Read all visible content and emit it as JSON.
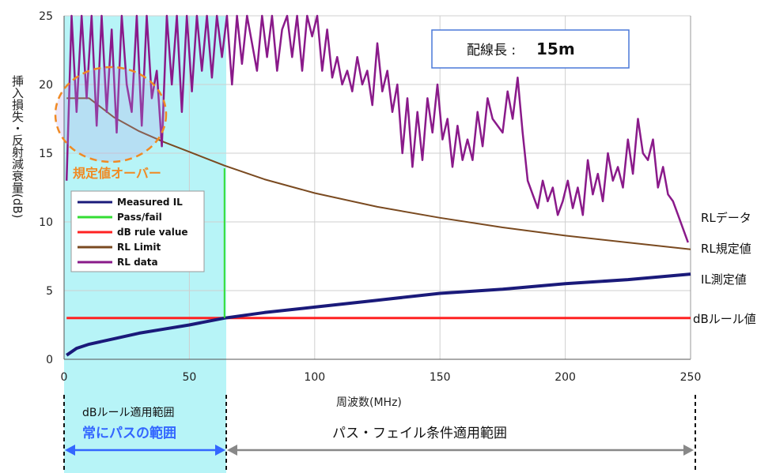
{
  "chart_data": {
    "type": "line",
    "xlabel": "周波数(MHz)",
    "ylabel": "挿入損失・反射減衰量(dB)",
    "xlim": [
      0,
      250
    ],
    "ylim": [
      0,
      25
    ],
    "x_ticks": [
      "0",
      "50",
      "100",
      "150",
      "200",
      "250"
    ],
    "y_ticks": [
      "0",
      "5",
      "10",
      "15",
      "20",
      "25"
    ],
    "grid": true,
    "legend_position": "left-middle",
    "legend": [
      "Measured IL",
      "Pass/fail",
      "dB rule value",
      "RL Limit",
      "RL data"
    ],
    "series": [
      {
        "name": "Measured IL",
        "color": "#1a1a7a",
        "x": [
          1,
          5,
          10,
          20,
          30,
          40,
          50,
          64,
          80,
          100,
          125,
          150,
          175,
          200,
          225,
          250
        ],
        "y": [
          0.3,
          0.8,
          1.1,
          1.5,
          1.9,
          2.2,
          2.5,
          3.0,
          3.4,
          3.8,
          4.3,
          4.8,
          5.1,
          5.5,
          5.8,
          6.2
        ]
      },
      {
        "name": "Pass/fail",
        "color": "#33dd33",
        "x": [
          64,
          64
        ],
        "y": [
          3.0,
          13.9
        ]
      },
      {
        "name": "dB rule value",
        "color": "#ff2222",
        "x": [
          1,
          250
        ],
        "y": [
          3.0,
          3.0
        ]
      },
      {
        "name": "RL Limit",
        "color": "#7a4a20",
        "x": [
          1,
          10,
          20,
          30,
          40,
          50,
          64,
          80,
          100,
          125,
          150,
          175,
          200,
          225,
          250
        ],
        "y": [
          19.0,
          19.0,
          17.6,
          16.6,
          15.8,
          15.1,
          14.1,
          13.1,
          12.1,
          11.1,
          10.3,
          9.6,
          9.0,
          8.5,
          8.0
        ]
      },
      {
        "name": "RL data",
        "color": "#8a1a8a",
        "x": [
          1,
          3,
          5,
          7,
          9,
          11,
          13,
          15,
          17,
          19,
          21,
          23,
          25,
          27,
          29,
          31,
          33,
          35,
          37,
          39,
          41,
          43,
          45,
          47,
          49,
          51,
          53,
          55,
          57,
          59,
          61,
          63,
          65,
          67,
          69,
          71,
          73,
          75,
          77,
          79,
          81,
          83,
          85,
          87,
          89,
          91,
          93,
          95,
          97,
          99,
          101,
          103,
          105,
          107,
          109,
          111,
          113,
          115,
          117,
          119,
          121,
          123,
          125,
          127,
          129,
          131,
          133,
          135,
          137,
          139,
          141,
          143,
          145,
          147,
          149,
          151,
          153,
          155,
          157,
          159,
          161,
          163,
          165,
          167,
          169,
          171,
          173,
          175,
          177,
          179,
          181,
          183,
          185,
          187,
          189,
          191,
          193,
          195,
          197,
          199,
          201,
          203,
          205,
          207,
          209,
          211,
          213,
          215,
          217,
          219,
          221,
          223,
          225,
          227,
          229,
          231,
          233,
          235,
          237,
          239,
          241,
          243,
          245,
          247,
          249
        ],
        "y": [
          13.0,
          25.0,
          18.0,
          25.0,
          19.0,
          25.0,
          17.0,
          25.0,
          18.0,
          24.0,
          16.5,
          25.0,
          20.0,
          18.0,
          25.0,
          17.0,
          25.0,
          19.0,
          21.0,
          15.5,
          25.0,
          20.0,
          25.0,
          18.0,
          25.0,
          19.5,
          25.0,
          21.0,
          25.0,
          20.5,
          25.0,
          22.0,
          25.0,
          20.0,
          25.0,
          21.5,
          25.0,
          23.0,
          21.0,
          25.0,
          22.0,
          25.0,
          21.0,
          24.0,
          25.0,
          22.0,
          25.0,
          21.0,
          25.0,
          23.5,
          25.0,
          21.0,
          24.0,
          20.5,
          22.0,
          20.0,
          21.0,
          19.5,
          22.0,
          20.0,
          21.0,
          18.5,
          23.0,
          19.5,
          21.0,
          18.0,
          20.0,
          15.0,
          19.0,
          14.0,
          18.0,
          14.5,
          19.0,
          16.5,
          20.0,
          16.0,
          17.5,
          14.0,
          17.0,
          14.5,
          16.0,
          14.5,
          18.0,
          15.5,
          19.0,
          17.5,
          17.0,
          16.5,
          19.5,
          17.5,
          20.5,
          16.5,
          13.0,
          12.0,
          11.0,
          13.0,
          11.5,
          12.5,
          10.5,
          11.5,
          13.0,
          11.0,
          12.5,
          10.5,
          14.5,
          12.0,
          13.5,
          11.5,
          15.0,
          13.0,
          14.0,
          12.5,
          16.0,
          13.5,
          17.5,
          15.0,
          14.5,
          16.0,
          12.5,
          14.0,
          12.0,
          11.5,
          10.5,
          9.5,
          8.5
        ]
      }
    ]
  },
  "annotations": {
    "cable_length_label": "配線長 :",
    "cable_length_value": "15m",
    "over_limit": "規定値オーバー",
    "right_rl_data": "RLデータ",
    "right_rl_limit": "RL規定値",
    "right_il": "IL測定値",
    "right_db_rule": "dBルール値",
    "region_db_rule": "dBルール適用範囲",
    "region_always_pass": "常にパスの範囲",
    "region_pass_fail": "パス・フェイル条件適用範囲"
  },
  "colors": {
    "shade": "#b7f4f7",
    "accent_blue": "#3366ff",
    "accent_orange": "#f08a24",
    "arrow_gray": "#888888"
  }
}
